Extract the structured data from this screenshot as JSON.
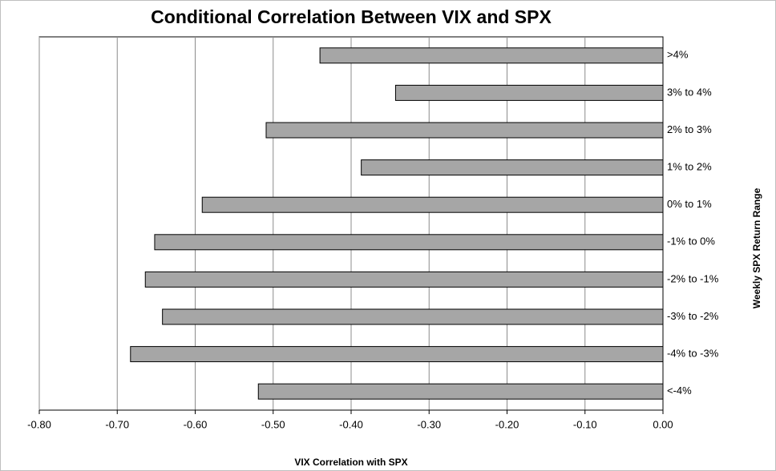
{
  "chart_data": {
    "type": "hbar",
    "title": "Conditional Correlation Between VIX and SPX",
    "x_label": "VIX Correlation with SPX",
    "y_label": "Weekly SPX Return Range",
    "categories": [
      ">4%",
      "3% to 4%",
      "2% to 3%",
      "1% to 2%",
      "0% to 1%",
      "-1% to 0%",
      "-2% to -1%",
      "-3% to -2%",
      "-4% to -3%",
      "<-4%"
    ],
    "values": [
      -0.44,
      -0.343,
      -0.509,
      -0.387,
      -0.591,
      -0.652,
      -0.664,
      -0.642,
      -0.683,
      -0.519
    ],
    "color": "#a6a6a6",
    "xlim": [
      -0.8,
      0
    ],
    "xticks": [
      {
        "value": -0.8,
        "label": "-0.80"
      },
      {
        "value": -0.7,
        "label": "-0.70"
      },
      {
        "value": -0.6,
        "label": "-0.60"
      },
      {
        "value": -0.5,
        "label": "-0.50"
      },
      {
        "value": -0.4,
        "label": "-0.40"
      },
      {
        "value": -0.3,
        "label": "-0.30"
      },
      {
        "value": -0.2,
        "label": "-0.20"
      },
      {
        "value": -0.1,
        "label": "-0.10"
      },
      {
        "value": 0,
        "label": "0.00"
      }
    ],
    "grid": true
  }
}
